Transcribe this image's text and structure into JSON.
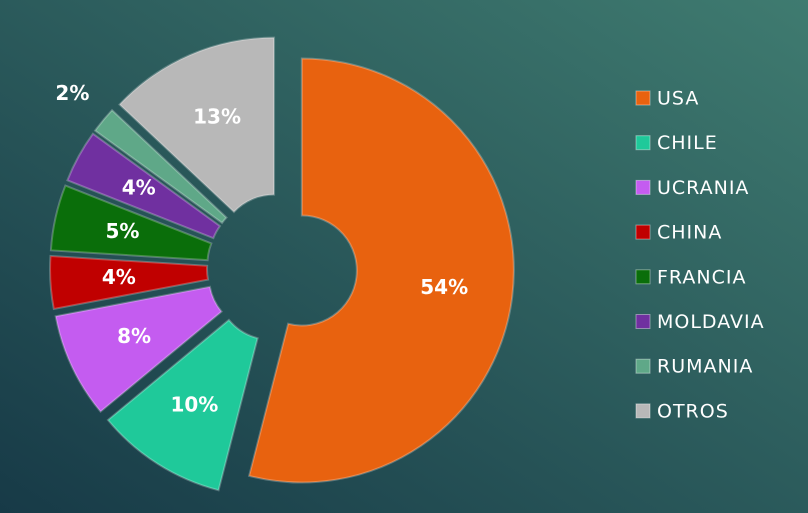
{
  "chart_data": {
    "type": "pie",
    "categories": [
      "USA",
      "CHILE",
      "UCRANIA",
      "CHINA",
      "FRANCIA",
      "MOLDAVIA",
      "RUMANIA",
      "OTROS"
    ],
    "values": [
      54,
      10,
      8,
      4,
      5,
      4,
      2,
      13
    ],
    "value_labels": [
      "54%",
      "10%",
      "8%",
      "4%",
      "5%",
      "4%",
      "2%",
      "13%"
    ],
    "colors": [
      "#e8620f",
      "#1fc99a",
      "#c45cf0",
      "#c00000",
      "#0a6e0a",
      "#7030a0",
      "#5fa888",
      "#b8b8b8"
    ],
    "legend": "right"
  }
}
